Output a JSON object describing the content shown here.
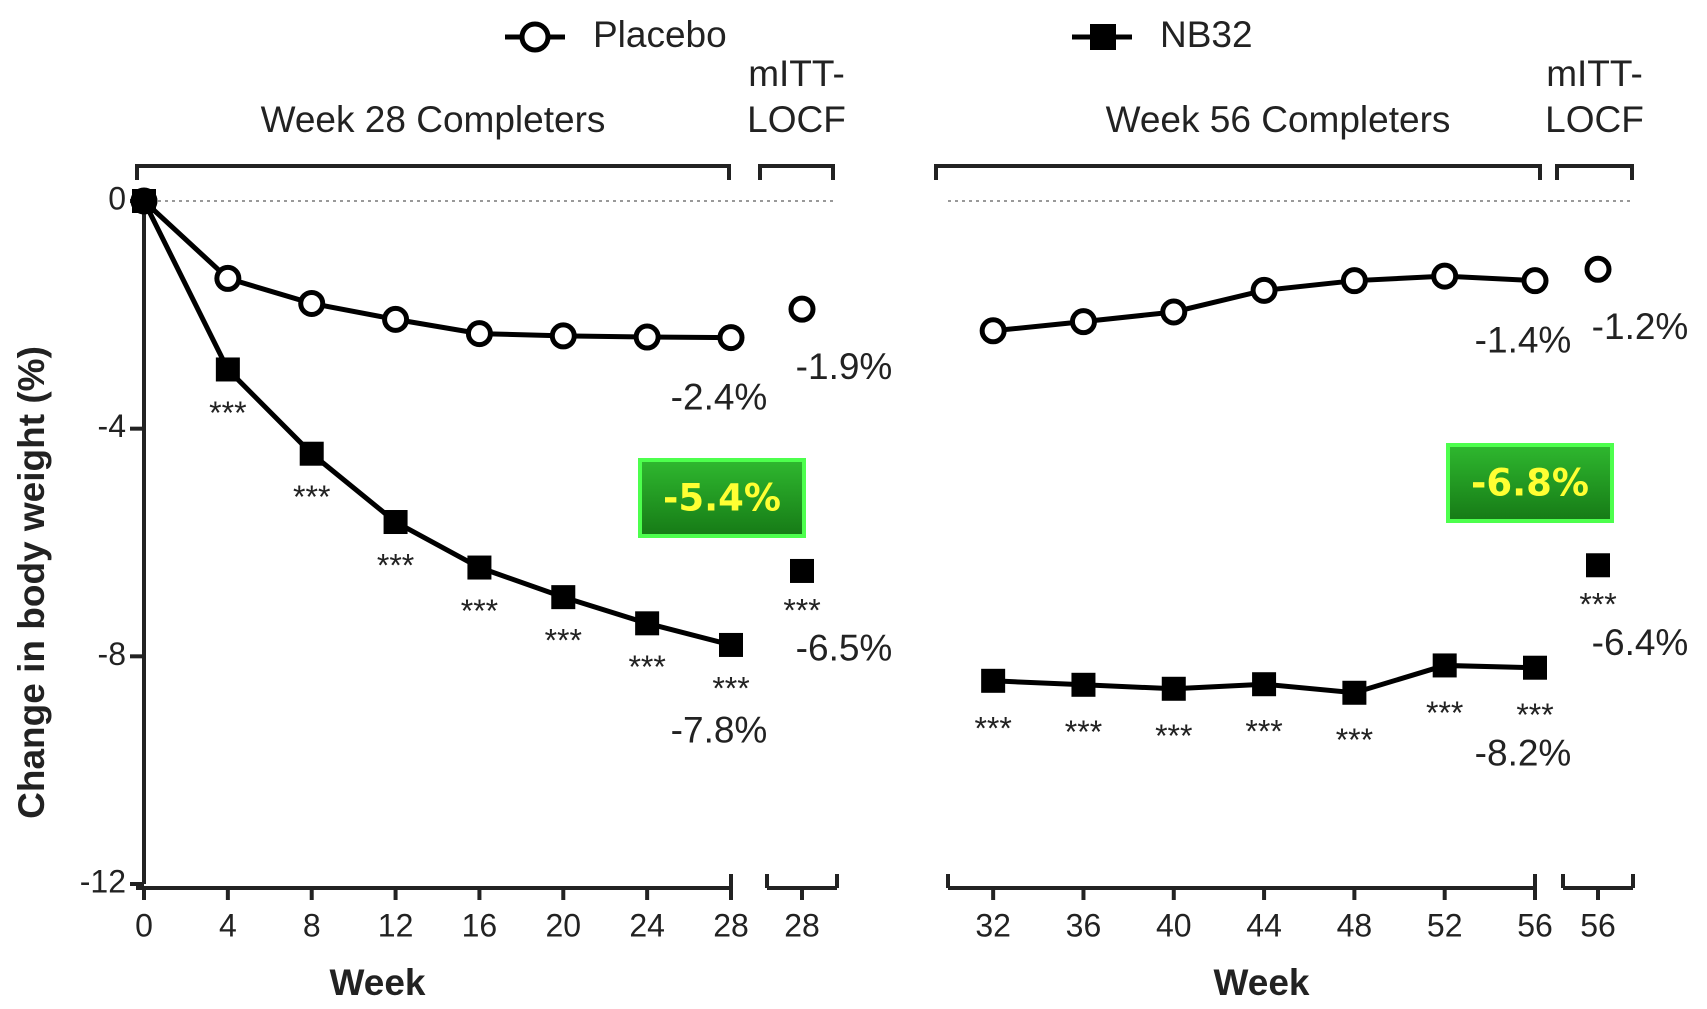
{
  "chart_data": [
    {
      "type": "line",
      "ylabel": "Change in body weight (%)",
      "xlabel": "Week",
      "bracket_label": "Week 28 Completers",
      "x": [
        0,
        4,
        8,
        12,
        16,
        20,
        24,
        28
      ],
      "xlim": [
        0,
        28
      ],
      "xticks": [
        0,
        4,
        8,
        12,
        16,
        20,
        24,
        28
      ],
      "ylim": [
        -12,
        0
      ],
      "yticks": [
        -12,
        -8,
        -4,
        0
      ],
      "series": [
        {
          "name": "Placebo",
          "color": "#000000",
          "marker": "open-circle",
          "values": [
            0,
            -1.36,
            -1.8,
            -2.08,
            -2.33,
            -2.37,
            -2.39,
            -2.4
          ],
          "value_labels": [
            null,
            null,
            null,
            null,
            null,
            null,
            null,
            "-2.4%"
          ],
          "significance": [
            null,
            null,
            null,
            null,
            null,
            null,
            null,
            null
          ]
        },
        {
          "name": "NB32",
          "color": "#000000",
          "marker": "filled-square",
          "values": [
            0,
            -2.96,
            -4.44,
            -5.64,
            -6.44,
            -6.96,
            -7.42,
            -7.8
          ],
          "value_labels": [
            null,
            null,
            null,
            null,
            null,
            null,
            null,
            "-7.8%"
          ],
          "significance": [
            null,
            "***",
            "***",
            "***",
            "***",
            "***",
            "***",
            "***"
          ]
        }
      ],
      "locf": {
        "label": [
          "mITT-",
          "LOCF"
        ],
        "x": 28,
        "values": [
          -1.9,
          -6.5
        ],
        "value_labels": [
          "-1.9%",
          "-6.5%"
        ],
        "significance": [
          null,
          "***"
        ]
      },
      "difference_label": "-5.4%"
    },
    {
      "type": "line",
      "xlabel": "Week",
      "bracket_label": "Week 56 Completers",
      "x": [
        32,
        36,
        40,
        44,
        48,
        52,
        56
      ],
      "xlim": [
        30,
        56
      ],
      "xticks": [
        32,
        36,
        40,
        44,
        48,
        52,
        56
      ],
      "ylim": [
        -12,
        0
      ],
      "series": [
        {
          "name": "Placebo",
          "color": "#000000",
          "marker": "open-circle",
          "values": [
            -2.28,
            -2.12,
            -1.95,
            -1.57,
            -1.4,
            -1.32,
            -1.4
          ],
          "value_labels": [
            null,
            null,
            null,
            null,
            null,
            null,
            "-1.4%"
          ],
          "significance": [
            null,
            null,
            null,
            null,
            null,
            null,
            null
          ]
        },
        {
          "name": "NB32",
          "color": "#000000",
          "marker": "filled-square",
          "values": [
            -8.43,
            -8.5,
            -8.57,
            -8.49,
            -8.64,
            -8.16,
            -8.2
          ],
          "value_labels": [
            null,
            null,
            null,
            null,
            null,
            null,
            "-8.2%"
          ],
          "significance": [
            "***",
            "***",
            "***",
            "***",
            "***",
            "***",
            "***"
          ]
        }
      ],
      "locf": {
        "label": [
          "mITT-",
          "LOCF"
        ],
        "x": 56,
        "values": [
          -1.2,
          -6.4
        ],
        "value_labels": [
          "-1.2%",
          "-6.4%"
        ],
        "significance": [
          null,
          "***"
        ]
      },
      "difference_label": "-6.8%"
    }
  ]
}
